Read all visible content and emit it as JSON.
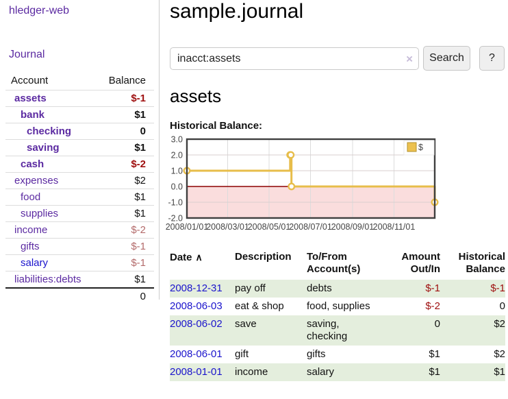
{
  "sidebar": {
    "brand": "hledger-web",
    "nav": {
      "journal": "Journal"
    },
    "table": {
      "col_account": "Account",
      "col_balance": "Balance",
      "accounts": [
        {
          "name": "assets",
          "balance": "$-1"
        },
        {
          "name": "bank",
          "balance": "$1"
        },
        {
          "name": "checking",
          "balance": "0"
        },
        {
          "name": "saving",
          "balance": "$1"
        },
        {
          "name": "cash",
          "balance": "$-2"
        },
        {
          "name": "expenses",
          "balance": "$2"
        },
        {
          "name": "food",
          "balance": "$1"
        },
        {
          "name": "supplies",
          "balance": "$1"
        },
        {
          "name": "income",
          "balance": "$-2"
        },
        {
          "name": "gifts",
          "balance": "$-1"
        },
        {
          "name": "salary",
          "balance": "$-1"
        },
        {
          "name": "liabilities:debts",
          "balance": "$1"
        }
      ],
      "total": "0"
    }
  },
  "main": {
    "title": "sample.journal",
    "search": {
      "value": "inacct:assets",
      "clear_icon": "×",
      "search_button": "Search",
      "help_button": "?"
    },
    "account_heading": "assets",
    "chart_heading": "Historical Balance:"
  },
  "chart_data": {
    "type": "line",
    "title": "Historical Balance",
    "series": [
      {
        "name": "$",
        "color": "#e7bd4a",
        "step": true,
        "points": [
          [
            "2008-01-01",
            1
          ],
          [
            "2008-06-01",
            2
          ],
          [
            "2008-06-02",
            2
          ],
          [
            "2008-06-03",
            0
          ],
          [
            "2008-12-31",
            -1
          ]
        ]
      }
    ],
    "x_range": [
      "2008-01-01",
      "2008-12-31"
    ],
    "x_tick_dates": [
      "2008-01-01",
      "2008-03-01",
      "2008-05-01",
      "2008-07-01",
      "2008-09-01",
      "2008-11-01"
    ],
    "x_tick_labels": [
      "2008/01/01",
      "2008/03/01",
      "2008/05/01",
      "2008/07/01",
      "2008/09/01",
      "2008/11/01"
    ],
    "ylim": [
      -2,
      3
    ],
    "y_ticks": [
      3,
      2,
      1,
      0,
      -1,
      -2
    ],
    "y_tick_labels": [
      "3.0",
      "2.0",
      "1.0",
      "0.0",
      "-1.0",
      "-2.0"
    ],
    "grid": true,
    "legend_position": "top-right",
    "legend_label": "$",
    "negative_region_color": "#fadddd",
    "zero_line_color": "#8b0000"
  },
  "register": {
    "sort_icon": "∧",
    "columns": [
      {
        "line1": "Date",
        "line2": ""
      },
      {
        "line1": "Description",
        "line2": ""
      },
      {
        "line1": "To/From",
        "line2": "Account(s)"
      },
      {
        "line1": "Amount",
        "line2": "Out/In"
      },
      {
        "line1": "Historical",
        "line2": "Balance"
      }
    ],
    "rows": [
      {
        "date": "2008-12-31",
        "description": "pay off",
        "accounts": "debts",
        "amount": "$-1",
        "balance": "$-1"
      },
      {
        "date": "2008-06-03",
        "description": "eat & shop",
        "accounts": "food, supplies",
        "amount": "$-2",
        "balance": "0"
      },
      {
        "date": "2008-06-02",
        "description": "save",
        "accounts": "saving, checking",
        "amount": "0",
        "balance": "$2"
      },
      {
        "date": "2008-06-01",
        "description": "gift",
        "accounts": "gifts",
        "amount": "$1",
        "balance": "$2"
      },
      {
        "date": "2008-01-01",
        "description": "income",
        "accounts": "salary",
        "amount": "$1",
        "balance": "$1"
      }
    ]
  },
  "colors": {
    "link_purple": "#5b2aa1",
    "link_blue": "#1a13cc",
    "negative_strong": "#9e0e0e",
    "negative_faded": "#b36a6a",
    "row_stripe_green": "#e4eedd",
    "chart_line_gold": "#e7bd4a",
    "chart_negative_fill": "#fadddd",
    "chart_zero_line": "#8b0000"
  }
}
